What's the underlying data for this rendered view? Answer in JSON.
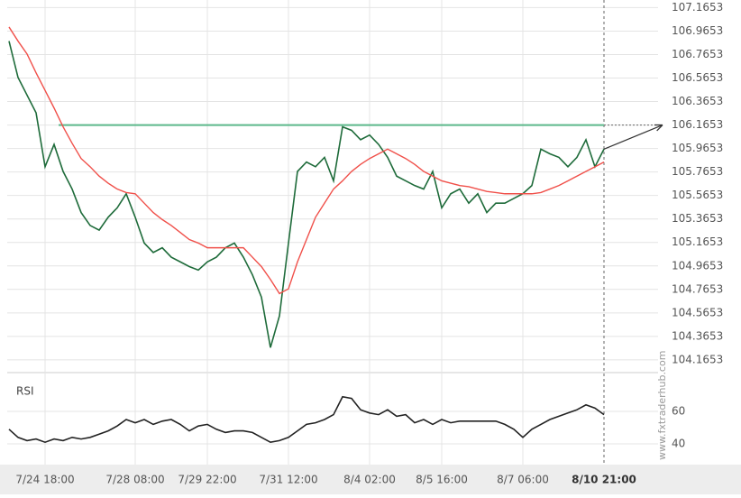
{
  "chart_data": {
    "type": "line",
    "categories": [
      null,
      null,
      null,
      null,
      "7/24 18:00",
      null,
      null,
      null,
      null,
      null,
      null,
      null,
      null,
      null,
      "7/28 08:00",
      null,
      null,
      null,
      null,
      null,
      null,
      null,
      "7/29 22:00",
      null,
      null,
      null,
      null,
      null,
      null,
      null,
      null,
      "7/31 12:00",
      null,
      null,
      null,
      null,
      null,
      null,
      null,
      null,
      "8/4 02:00",
      null,
      null,
      null,
      null,
      null,
      null,
      null,
      "8/5 16:00",
      null,
      null,
      null,
      null,
      null,
      null,
      null,
      null,
      "8/7 06:00",
      null,
      null,
      null,
      null,
      null,
      null,
      null,
      null,
      "8/10 21:00"
    ],
    "series": [
      {
        "color": "#1e6b3a",
        "values": [
          106.88,
          106.57,
          106.42,
          106.27,
          105.81,
          106.0,
          105.77,
          105.62,
          105.42,
          105.31,
          105.27,
          105.38,
          105.46,
          105.58,
          105.38,
          105.16,
          105.08,
          105.12,
          105.04,
          105.0,
          104.96,
          104.93,
          105.0,
          105.04,
          105.12,
          105.16,
          105.04,
          104.89,
          104.7,
          104.27,
          104.54,
          105.16,
          105.77,
          105.85,
          105.81,
          105.89,
          105.69,
          106.15,
          106.12,
          106.04,
          106.08,
          106.0,
          105.89,
          105.73,
          105.69,
          105.65,
          105.62,
          105.77,
          105.46,
          105.58,
          105.62,
          105.5,
          105.58,
          105.42,
          105.5,
          105.5,
          105.54,
          105.58,
          105.65,
          105.96,
          105.92,
          105.89,
          105.81,
          105.89,
          106.04,
          105.81,
          105.96
        ]
      },
      {
        "color": "#f0504a",
        "values": [
          107.0,
          106.88,
          106.77,
          106.61,
          106.46,
          106.31,
          106.15,
          106.01,
          105.88,
          105.81,
          105.73,
          105.67,
          105.62,
          105.59,
          105.58,
          105.5,
          105.42,
          105.36,
          105.31,
          105.25,
          105.19,
          105.16,
          105.12,
          105.12,
          105.12,
          105.12,
          105.12,
          105.04,
          104.96,
          104.85,
          104.73,
          104.77,
          105.0,
          105.19,
          105.38,
          105.5,
          105.62,
          105.69,
          105.77,
          105.83,
          105.88,
          105.92,
          105.96,
          105.92,
          105.88,
          105.83,
          105.77,
          105.73,
          105.69,
          105.67,
          105.65,
          105.64,
          105.62,
          105.6,
          105.59,
          105.58,
          105.58,
          105.58,
          105.58,
          105.59,
          105.62,
          105.65,
          105.69,
          105.73,
          105.77,
          105.81,
          105.85
        ]
      }
    ],
    "ylim": [
      104.08,
      107.23
    ],
    "yticks": [
      104.1653,
      104.3653,
      104.5653,
      104.7653,
      104.9653,
      105.1653,
      105.3653,
      105.5653,
      105.7653,
      105.9653,
      106.1653,
      106.3653,
      106.5653,
      106.7653,
      106.9653,
      107.1653
    ],
    "level": 106.1653,
    "level_color": "#5cb88a",
    "rsi": {
      "title": "RSI",
      "color": "#222222",
      "ylim": [
        30,
        80
      ],
      "yticks": [
        40,
        60
      ],
      "values": [
        49,
        44,
        42,
        43,
        41,
        43,
        42,
        44,
        43,
        44,
        46,
        48,
        51,
        55,
        53,
        55,
        52,
        54,
        55,
        52,
        48,
        51,
        52,
        49,
        47,
        48,
        48,
        47,
        44,
        41,
        42,
        44,
        48,
        52,
        53,
        55,
        58,
        69,
        68,
        61,
        59,
        58,
        61,
        57,
        58,
        53,
        55,
        52,
        55,
        53,
        54,
        54,
        54,
        54,
        54,
        52,
        49,
        44,
        49,
        52,
        55,
        57,
        59,
        61,
        64,
        62,
        58
      ]
    },
    "watermark": "www.fxtraderhub.com",
    "grid": true
  }
}
